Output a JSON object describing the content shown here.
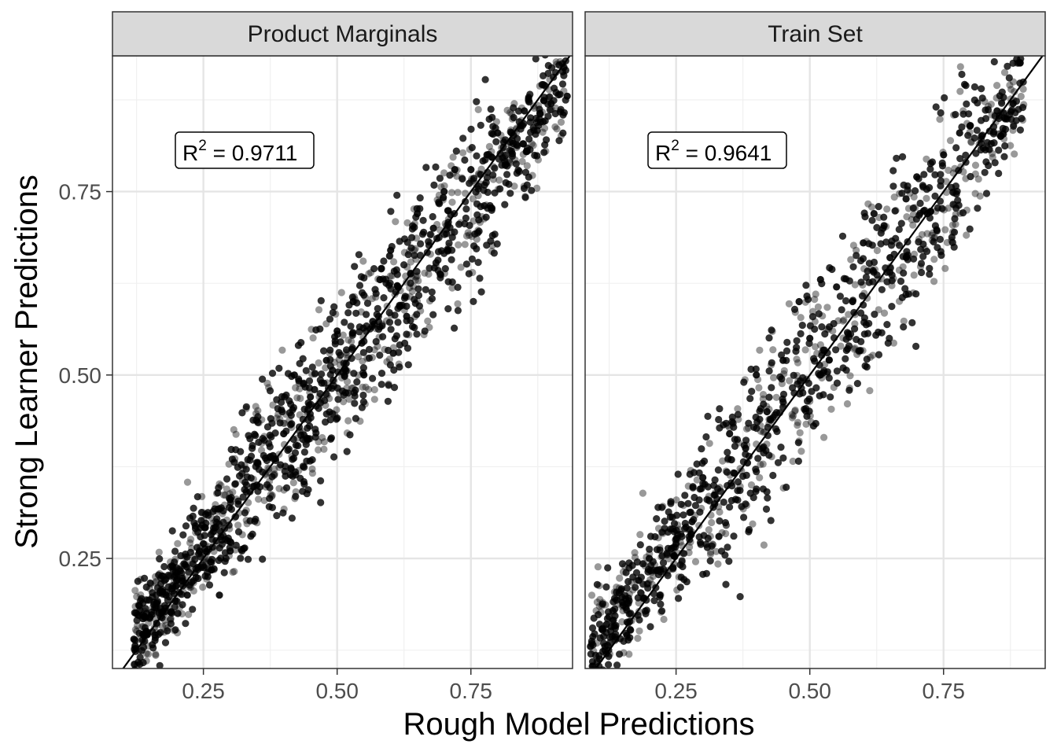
{
  "chart_data": {
    "type": "scatter",
    "xlabel": "Rough Model Predictions",
    "ylabel": "Strong Learner Predictions",
    "xlim": [
      0.08,
      0.94
    ],
    "ylim": [
      0.1,
      0.935
    ],
    "x_ticks": [
      "0.25",
      "0.50",
      "0.75"
    ],
    "y_ticks": [
      "0.25",
      "0.50",
      "0.75"
    ],
    "grid": true,
    "legend": "none",
    "point_color": "#000000",
    "reference_line": "y = x",
    "panels": [
      {
        "title": "Product Marginals",
        "annotation": {
          "prefix": "R",
          "superscript": "2",
          "value": "= 0.9711"
        },
        "r_squared": 0.9711,
        "x_range": [
          0.12,
          0.93
        ],
        "line_fit": {
          "slope": 0.93,
          "intercept": 0.03
        },
        "n_points": 1400,
        "noise_sd": 0.034,
        "bands": [
          -0.045,
          0.0,
          0.05
        ],
        "points": [
          {
            "x": 0.12,
            "y": 0.14
          },
          {
            "x": 0.15,
            "y": 0.17
          },
          {
            "x": 0.18,
            "y": 0.2
          },
          {
            "x": 0.2,
            "y": 0.22
          },
          {
            "x": 0.22,
            "y": 0.2
          },
          {
            "x": 0.25,
            "y": 0.27
          },
          {
            "x": 0.28,
            "y": 0.2
          },
          {
            "x": 0.3,
            "y": 0.26
          },
          {
            "x": 0.3,
            "y": 0.33
          },
          {
            "x": 0.35,
            "y": 0.35
          },
          {
            "x": 0.38,
            "y": 0.39
          },
          {
            "x": 0.4,
            "y": 0.42
          },
          {
            "x": 0.42,
            "y": 0.5
          },
          {
            "x": 0.45,
            "y": 0.47
          },
          {
            "x": 0.48,
            "y": 0.52
          },
          {
            "x": 0.5,
            "y": 0.56
          },
          {
            "x": 0.53,
            "y": 0.6
          },
          {
            "x": 0.55,
            "y": 0.5
          },
          {
            "x": 0.58,
            "y": 0.63
          },
          {
            "x": 0.6,
            "y": 0.67
          },
          {
            "x": 0.63,
            "y": 0.58
          },
          {
            "x": 0.65,
            "y": 0.72
          },
          {
            "x": 0.68,
            "y": 0.7
          },
          {
            "x": 0.7,
            "y": 0.75
          },
          {
            "x": 0.72,
            "y": 0.78
          },
          {
            "x": 0.75,
            "y": 0.78
          },
          {
            "x": 0.78,
            "y": 0.8
          },
          {
            "x": 0.8,
            "y": 0.83
          },
          {
            "x": 0.85,
            "y": 0.86
          },
          {
            "x": 0.9,
            "y": 0.87
          },
          {
            "x": 0.93,
            "y": 0.88
          }
        ]
      },
      {
        "title": "Train Set",
        "annotation": {
          "prefix": "R",
          "superscript": "2",
          "value": "= 0.9641"
        },
        "r_squared": 0.9641,
        "x_range": [
          0.09,
          0.9
        ],
        "line_fit": {
          "slope": 0.95,
          "intercept": 0.035
        },
        "n_points": 1100,
        "noise_sd": 0.038,
        "bands": [
          -0.045,
          0.0,
          0.05
        ],
        "points": [
          {
            "x": 0.09,
            "y": 0.13
          },
          {
            "x": 0.12,
            "y": 0.16
          },
          {
            "x": 0.15,
            "y": 0.19
          },
          {
            "x": 0.18,
            "y": 0.22
          },
          {
            "x": 0.2,
            "y": 0.25
          },
          {
            "x": 0.22,
            "y": 0.2
          },
          {
            "x": 0.25,
            "y": 0.27
          },
          {
            "x": 0.28,
            "y": 0.3
          },
          {
            "x": 0.3,
            "y": 0.36
          },
          {
            "x": 0.33,
            "y": 0.28
          },
          {
            "x": 0.35,
            "y": 0.42
          },
          {
            "x": 0.38,
            "y": 0.4
          },
          {
            "x": 0.4,
            "y": 0.5
          },
          {
            "x": 0.42,
            "y": 0.45
          },
          {
            "x": 0.45,
            "y": 0.52
          },
          {
            "x": 0.48,
            "y": 0.6
          },
          {
            "x": 0.5,
            "y": 0.55
          },
          {
            "x": 0.52,
            "y": 0.63
          },
          {
            "x": 0.55,
            "y": 0.62
          },
          {
            "x": 0.58,
            "y": 0.6
          },
          {
            "x": 0.6,
            "y": 0.68
          },
          {
            "x": 0.62,
            "y": 0.72
          },
          {
            "x": 0.65,
            "y": 0.66
          },
          {
            "x": 0.68,
            "y": 0.74
          },
          {
            "x": 0.7,
            "y": 0.77
          },
          {
            "x": 0.72,
            "y": 0.72
          },
          {
            "x": 0.75,
            "y": 0.8
          },
          {
            "x": 0.78,
            "y": 0.83
          },
          {
            "x": 0.8,
            "y": 0.84
          },
          {
            "x": 0.85,
            "y": 0.86
          },
          {
            "x": 0.88,
            "y": 0.87
          }
        ]
      }
    ]
  }
}
